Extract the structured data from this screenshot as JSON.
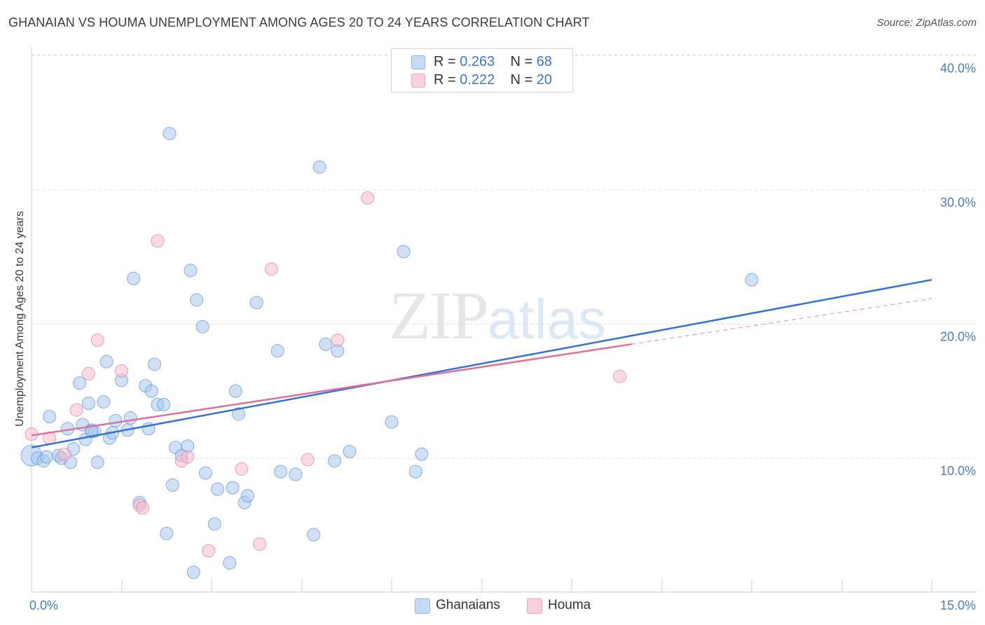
{
  "title": "GHANAIAN VS HOUMA UNEMPLOYMENT AMONG AGES 20 TO 24 YEARS CORRELATION CHART",
  "source": "Source: ZipAtlas.com",
  "watermark": {
    "zip": "ZIP",
    "atlas": "atlas"
  },
  "legend": {
    "rows": [
      {
        "r_label": "R = ",
        "r_value": "0.263",
        "n_label": "N = ",
        "n_value": "68",
        "color": "#a9c8ef"
      },
      {
        "r_label": "R = ",
        "r_value": "0.222",
        "n_label": "N = ",
        "n_value": "20",
        "color": "#f6bcd0"
      }
    ]
  },
  "bottom_legend": [
    {
      "label": "Ghanaians",
      "color": "#a9c8ef"
    },
    {
      "label": "Houma",
      "color": "#f6bcd0"
    }
  ],
  "chart_data": {
    "type": "scatter",
    "title": "GHANAIAN VS HOUMA UNEMPLOYMENT AMONG AGES 20 TO 24 YEARS CORRELATION CHART",
    "xlabel": "",
    "ylabel": "Unemployment Among Ages 20 to 24 years",
    "xlim": [
      0,
      15
    ],
    "ylim": [
      0,
      40
    ],
    "x_tick_labels": [
      {
        "value": 0,
        "label": "0.0%"
      },
      {
        "value": 15,
        "label": "15.0%"
      }
    ],
    "y_tick_labels": [
      {
        "value": 10,
        "label": "10.0%"
      },
      {
        "value": 20,
        "label": "20.0%"
      },
      {
        "value": 30,
        "label": "30.0%"
      },
      {
        "value": 40,
        "label": "40.0%"
      }
    ],
    "series": [
      {
        "name": "Ghanaians",
        "color": "#5b8fd9",
        "fill": "#a9c8ef",
        "trend": {
          "x0": 0,
          "y0": 10.8,
          "x1": 15,
          "y1": 23.3
        },
        "points": [
          [
            0.0,
            10.2
          ],
          [
            0.1,
            10.0
          ],
          [
            0.2,
            9.8
          ],
          [
            0.25,
            10.1
          ],
          [
            0.3,
            13.1
          ],
          [
            0.45,
            10.2
          ],
          [
            0.5,
            10.0
          ],
          [
            0.6,
            12.2
          ],
          [
            0.65,
            9.7
          ],
          [
            0.7,
            10.7
          ],
          [
            0.8,
            15.6
          ],
          [
            0.85,
            12.5
          ],
          [
            0.9,
            11.4
          ],
          [
            0.95,
            14.1
          ],
          [
            1.0,
            12.1
          ],
          [
            1.05,
            12.0
          ],
          [
            1.1,
            9.7
          ],
          [
            1.2,
            14.2
          ],
          [
            1.25,
            17.2
          ],
          [
            1.3,
            11.5
          ],
          [
            1.35,
            11.9
          ],
          [
            1.4,
            12.8
          ],
          [
            1.5,
            15.8
          ],
          [
            1.6,
            12.1
          ],
          [
            1.65,
            13.0
          ],
          [
            1.7,
            23.4
          ],
          [
            1.8,
            6.7
          ],
          [
            1.9,
            15.4
          ],
          [
            1.95,
            12.2
          ],
          [
            2.0,
            15.0
          ],
          [
            2.05,
            17.0
          ],
          [
            2.1,
            14.0
          ],
          [
            2.2,
            14.0
          ],
          [
            2.25,
            4.4
          ],
          [
            2.3,
            34.2
          ],
          [
            2.35,
            8.0
          ],
          [
            2.4,
            10.8
          ],
          [
            2.5,
            10.2
          ],
          [
            2.6,
            10.9
          ],
          [
            2.65,
            24.0
          ],
          [
            2.7,
            1.5
          ],
          [
            2.75,
            21.8
          ],
          [
            2.85,
            19.8
          ],
          [
            2.9,
            8.9
          ],
          [
            3.05,
            5.1
          ],
          [
            3.1,
            7.7
          ],
          [
            3.3,
            2.2
          ],
          [
            3.35,
            7.8
          ],
          [
            3.4,
            15.0
          ],
          [
            3.45,
            13.3
          ],
          [
            3.55,
            6.7
          ],
          [
            3.6,
            7.2
          ],
          [
            3.75,
            21.6
          ],
          [
            4.1,
            18.0
          ],
          [
            4.15,
            9.0
          ],
          [
            4.4,
            8.8
          ],
          [
            4.7,
            4.3
          ],
          [
            4.8,
            31.7
          ],
          [
            4.9,
            18.5
          ],
          [
            5.05,
            9.8
          ],
          [
            5.1,
            18.0
          ],
          [
            5.3,
            10.5
          ],
          [
            6.0,
            12.7
          ],
          [
            6.2,
            25.4
          ],
          [
            6.4,
            9.0
          ],
          [
            6.5,
            10.3
          ],
          [
            12.0,
            23.3
          ],
          [
            1.0,
            12.0
          ]
        ]
      },
      {
        "name": "Houma",
        "color": "#e07aa0",
        "fill": "#f6bcd0",
        "trend": {
          "x0": 0,
          "y0": 11.7,
          "x1": 10.0,
          "y1": 18.5
        },
        "trend_ext": {
          "x0": 10.0,
          "y0": 18.5,
          "x1": 15,
          "y1": 21.9
        },
        "points": [
          [
            0.0,
            11.8
          ],
          [
            0.3,
            11.5
          ],
          [
            0.55,
            10.3
          ],
          [
            0.75,
            13.6
          ],
          [
            0.95,
            16.3
          ],
          [
            1.1,
            18.8
          ],
          [
            1.5,
            16.5
          ],
          [
            1.8,
            6.5
          ],
          [
            1.85,
            6.3
          ],
          [
            2.1,
            26.2
          ],
          [
            2.5,
            9.8
          ],
          [
            2.6,
            10.1
          ],
          [
            2.95,
            3.1
          ],
          [
            3.5,
            9.2
          ],
          [
            3.8,
            3.6
          ],
          [
            4.0,
            24.1
          ],
          [
            4.6,
            9.9
          ],
          [
            5.1,
            18.8
          ],
          [
            5.6,
            29.4
          ],
          [
            9.8,
            16.1
          ]
        ]
      }
    ],
    "grid": true,
    "legend_position": "top-center"
  }
}
